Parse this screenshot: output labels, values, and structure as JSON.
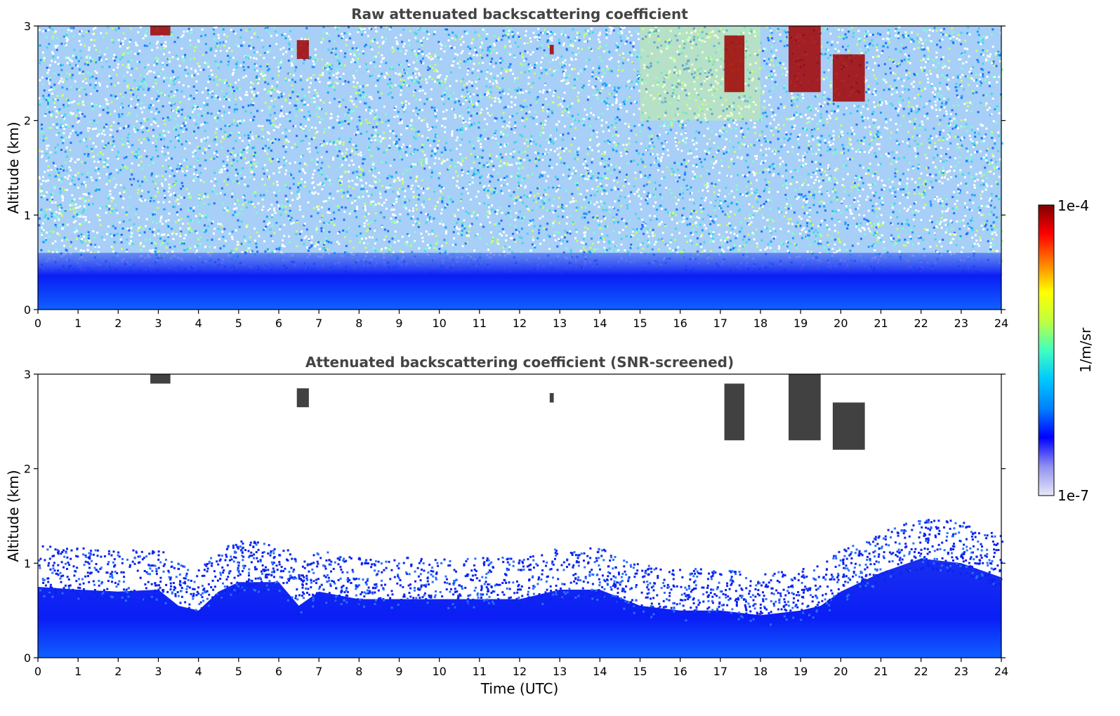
{
  "chart_data": [
    {
      "type": "heatmap",
      "title": "Raw attenuated backscattering coefficient",
      "xlabel": "",
      "ylabel": "Altitude (km)",
      "xlim": [
        0,
        24
      ],
      "ylim": [
        0,
        3
      ],
      "x_ticks": [
        "0",
        "1",
        "2",
        "3",
        "4",
        "5",
        "6",
        "7",
        "8",
        "9",
        "10",
        "11",
        "12",
        "13",
        "14",
        "15",
        "16",
        "17",
        "18",
        "19",
        "20",
        "21",
        "22",
        "23",
        "24"
      ],
      "y_ticks": [
        "0",
        "1",
        "2",
        "3"
      ],
      "features": [
        {
          "desc": "dense aerosol boundary layer",
          "x_range": [
            0,
            24
          ],
          "alt_top_km": 0.6
        },
        {
          "desc": "noisy background above boundary layer",
          "x_range": [
            0,
            24
          ],
          "alt_range_km": [
            0.6,
            3
          ]
        },
        {
          "desc": "cloud",
          "x_range": [
            2.8,
            3.3
          ],
          "alt_range_km": [
            2.9,
            3.0
          ]
        },
        {
          "desc": "cloud",
          "x_range": [
            6.45,
            6.75
          ],
          "alt_range_km": [
            2.65,
            2.85
          ]
        },
        {
          "desc": "cloud",
          "x_range": [
            12.75,
            12.85
          ],
          "alt_range_km": [
            2.7,
            2.8
          ]
        },
        {
          "desc": "cloud",
          "x_range": [
            17.1,
            17.6
          ],
          "alt_range_km": [
            2.3,
            2.9
          ]
        },
        {
          "desc": "cloud",
          "x_range": [
            18.7,
            19.5
          ],
          "alt_range_km": [
            2.3,
            3.0
          ]
        },
        {
          "desc": "cloud",
          "x_range": [
            19.8,
            20.6
          ],
          "alt_range_km": [
            2.2,
            2.7
          ]
        }
      ]
    },
    {
      "type": "heatmap",
      "title": "Attenuated backscattering coefficient (SNR-screened)",
      "xlabel": "Time (UTC)",
      "ylabel": "Altitude (km)",
      "xlim": [
        0,
        24
      ],
      "ylim": [
        0,
        3
      ],
      "x_ticks": [
        "0",
        "1",
        "2",
        "3",
        "4",
        "5",
        "6",
        "7",
        "8",
        "9",
        "10",
        "11",
        "12",
        "13",
        "14",
        "15",
        "16",
        "17",
        "18",
        "19",
        "20",
        "21",
        "22",
        "23",
        "24"
      ],
      "y_ticks": [
        "0",
        "1",
        "2",
        "3"
      ],
      "boundary_layer_top_km": [
        [
          0,
          0.75
        ],
        [
          1,
          0.72
        ],
        [
          2,
          0.7
        ],
        [
          3,
          0.72
        ],
        [
          3.5,
          0.55
        ],
        [
          4,
          0.5
        ],
        [
          4.5,
          0.7
        ],
        [
          5,
          0.8
        ],
        [
          6,
          0.8
        ],
        [
          6.5,
          0.55
        ],
        [
          7,
          0.7
        ],
        [
          8,
          0.62
        ],
        [
          9,
          0.62
        ],
        [
          10,
          0.62
        ],
        [
          11,
          0.62
        ],
        [
          12,
          0.62
        ],
        [
          13,
          0.72
        ],
        [
          14,
          0.72
        ],
        [
          15,
          0.55
        ],
        [
          16,
          0.5
        ],
        [
          17,
          0.5
        ],
        [
          18,
          0.45
        ],
        [
          19,
          0.5
        ],
        [
          19.5,
          0.55
        ],
        [
          20,
          0.7
        ],
        [
          21,
          0.9
        ],
        [
          22,
          1.05
        ],
        [
          23,
          1.0
        ],
        [
          24,
          0.85
        ]
      ]
    }
  ],
  "colorbar": {
    "max_label": "1e-4",
    "min_label": "1e-7",
    "unit": "1/m/sr",
    "colors": [
      "#e8e8f8",
      "#9090f0",
      "#0000ff",
      "#0080ff",
      "#00c8ff",
      "#40ffc0",
      "#c0ff40",
      "#ffff00",
      "#ff8000",
      "#ff0000",
      "#800000"
    ]
  }
}
